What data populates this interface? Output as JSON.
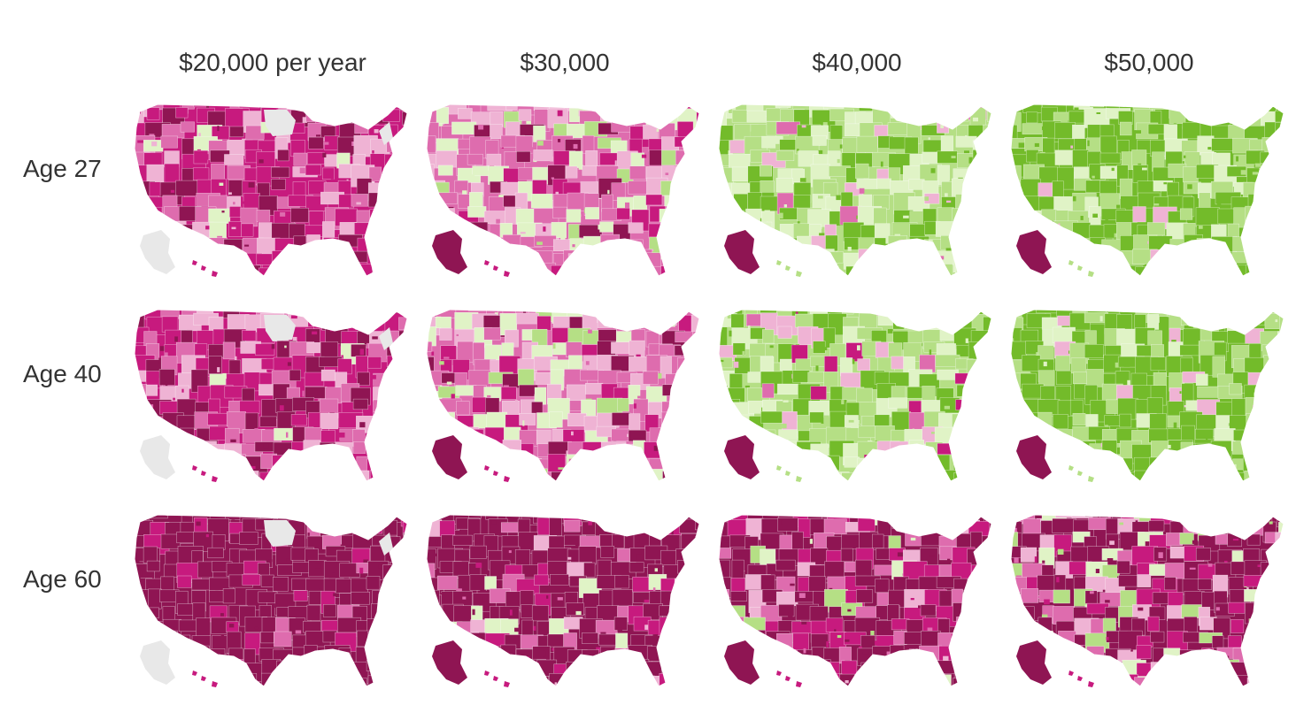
{
  "columns": [
    {
      "label": "$20,000 per year"
    },
    {
      "label": "$30,000"
    },
    {
      "label": "$40,000"
    },
    {
      "label": "$50,000"
    }
  ],
  "rows": [
    {
      "label": "Age 27"
    },
    {
      "label": "Age 40"
    },
    {
      "label": "Age 60"
    }
  ],
  "palette": {
    "dark_magenta": "#8f1553",
    "magenta": "#c71a7e",
    "medium_pink": "#de6cae",
    "light_pink": "#efb3d4",
    "pale_green": "#e0f3c6",
    "light_green": "#b5df85",
    "green": "#73bb2a",
    "no_data_gray": "#e8e8e8"
  },
  "maps": [
    [
      {
        "base": "magenta",
        "mix": [
          [
            "dark_magenta",
            0.25
          ],
          [
            "magenta",
            0.35
          ],
          [
            "medium_pink",
            0.25
          ],
          [
            "light_pink",
            0.12
          ],
          [
            "pale_green",
            0.03
          ]
        ],
        "no_data": true
      },
      {
        "base": "medium_pink",
        "mix": [
          [
            "dark_magenta",
            0.06
          ],
          [
            "magenta",
            0.14
          ],
          [
            "medium_pink",
            0.28
          ],
          [
            "light_pink",
            0.26
          ],
          [
            "pale_green",
            0.2
          ],
          [
            "light_green",
            0.06
          ]
        ],
        "no_data": false,
        "alaska": "dark_magenta"
      },
      {
        "base": "light_green",
        "mix": [
          [
            "medium_pink",
            0.05
          ],
          [
            "light_pink",
            0.07
          ],
          [
            "pale_green",
            0.28
          ],
          [
            "light_green",
            0.3
          ],
          [
            "green",
            0.3
          ]
        ],
        "no_data": false,
        "alaska": "dark_magenta"
      },
      {
        "base": "green",
        "mix": [
          [
            "light_pink",
            0.05
          ],
          [
            "pale_green",
            0.12
          ],
          [
            "light_green",
            0.33
          ],
          [
            "green",
            0.5
          ]
        ],
        "no_data": false,
        "alaska": "dark_magenta"
      }
    ],
    [
      {
        "base": "magenta",
        "mix": [
          [
            "dark_magenta",
            0.28
          ],
          [
            "magenta",
            0.35
          ],
          [
            "medium_pink",
            0.22
          ],
          [
            "light_pink",
            0.12
          ],
          [
            "pale_green",
            0.03
          ]
        ],
        "no_data": true,
        "alaska": "no_data_gray"
      },
      {
        "base": "medium_pink",
        "mix": [
          [
            "dark_magenta",
            0.08
          ],
          [
            "magenta",
            0.14
          ],
          [
            "medium_pink",
            0.26
          ],
          [
            "light_pink",
            0.26
          ],
          [
            "pale_green",
            0.2
          ],
          [
            "light_green",
            0.06
          ]
        ],
        "no_data": false,
        "alaska": "dark_magenta"
      },
      {
        "base": "light_green",
        "mix": [
          [
            "magenta",
            0.04
          ],
          [
            "medium_pink",
            0.05
          ],
          [
            "light_pink",
            0.08
          ],
          [
            "pale_green",
            0.25
          ],
          [
            "light_green",
            0.28
          ],
          [
            "green",
            0.3
          ]
        ],
        "no_data": false,
        "alaska": "dark_magenta"
      },
      {
        "base": "green",
        "mix": [
          [
            "light_pink",
            0.05
          ],
          [
            "pale_green",
            0.12
          ],
          [
            "light_green",
            0.33
          ],
          [
            "green",
            0.5
          ]
        ],
        "no_data": false,
        "alaska": "dark_magenta"
      }
    ],
    [
      {
        "base": "dark_magenta",
        "mix": [
          [
            "dark_magenta",
            0.88
          ],
          [
            "magenta",
            0.08
          ],
          [
            "medium_pink",
            0.04
          ]
        ],
        "no_data": true,
        "alaska": "no_data_gray"
      },
      {
        "base": "dark_magenta",
        "mix": [
          [
            "dark_magenta",
            0.72
          ],
          [
            "magenta",
            0.12
          ],
          [
            "medium_pink",
            0.08
          ],
          [
            "light_pink",
            0.05
          ],
          [
            "pale_green",
            0.03
          ]
        ],
        "no_data": false,
        "alaska": "dark_magenta"
      },
      {
        "base": "dark_magenta",
        "mix": [
          [
            "dark_magenta",
            0.55
          ],
          [
            "magenta",
            0.15
          ],
          [
            "medium_pink",
            0.12
          ],
          [
            "light_pink",
            0.08
          ],
          [
            "pale_green",
            0.05
          ],
          [
            "light_green",
            0.05
          ]
        ],
        "no_data": false,
        "alaska": "dark_magenta"
      },
      {
        "base": "dark_magenta",
        "mix": [
          [
            "dark_magenta",
            0.48
          ],
          [
            "magenta",
            0.16
          ],
          [
            "medium_pink",
            0.12
          ],
          [
            "light_pink",
            0.1
          ],
          [
            "pale_green",
            0.07
          ],
          [
            "light_green",
            0.07
          ]
        ],
        "no_data": false,
        "alaska": "dark_magenta"
      }
    ]
  ]
}
